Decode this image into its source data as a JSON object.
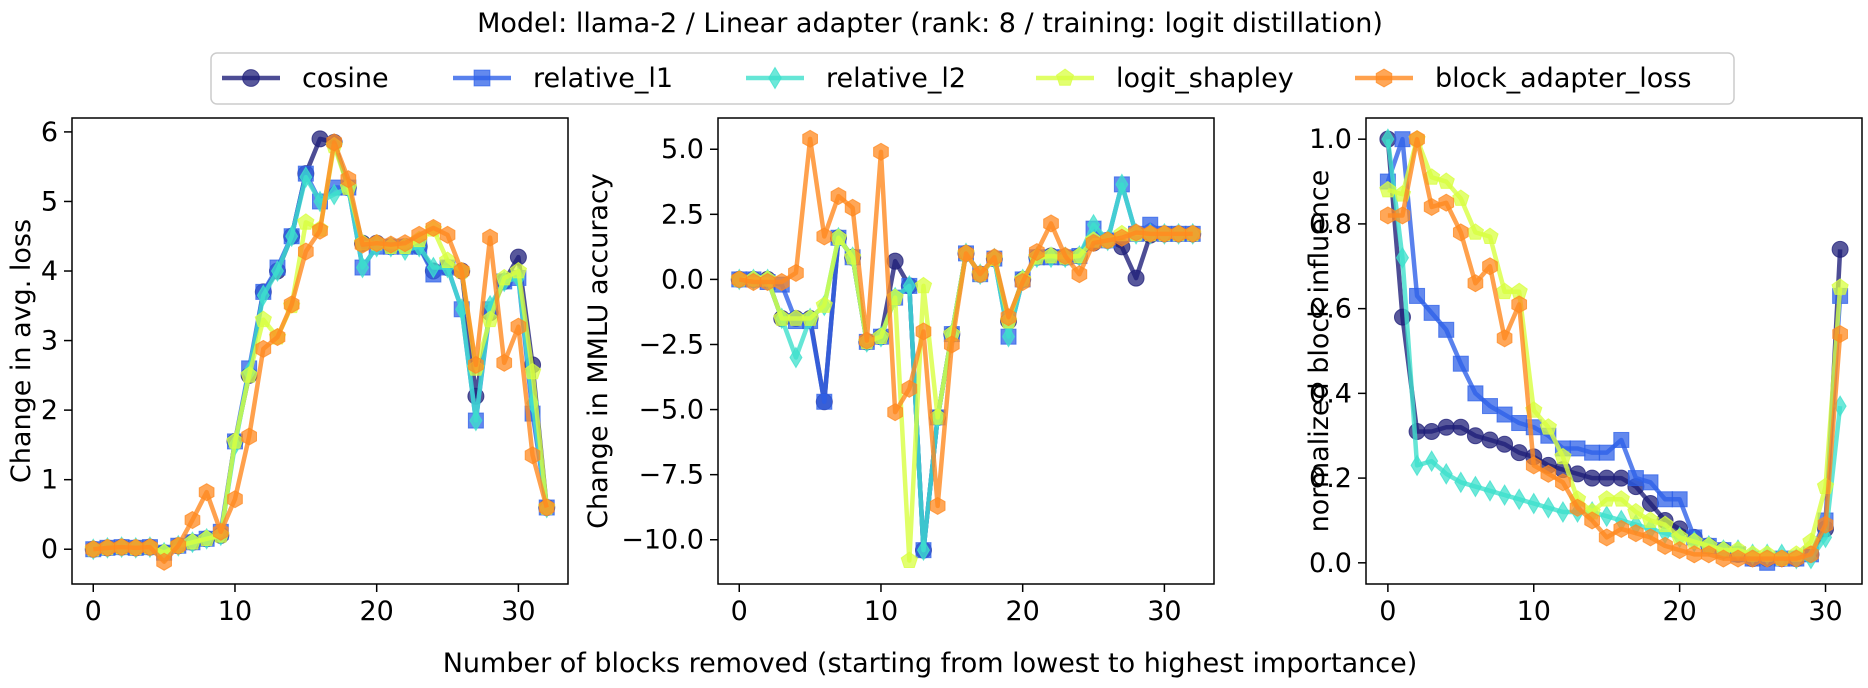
{
  "figure": {
    "title": "Model: llama-2 / Linear adapter (rank: 8 / training: logit distillation)",
    "xlabel": "Number of blocks removed (starting from lowest to highest importance)"
  },
  "legend": {
    "placement": "top-center",
    "items": [
      {
        "name": "cosine",
        "color": "#20207a",
        "marker": "circle"
      },
      {
        "name": "relative_l1",
        "color": "#2f62e8",
        "marker": "square"
      },
      {
        "name": "relative_l2",
        "color": "#3ee0cc",
        "marker": "diamond"
      },
      {
        "name": "logit_shapley",
        "color": "#d8ff40",
        "marker": "pentagon"
      },
      {
        "name": "block_adapter_loss",
        "color": "#ff8a20",
        "marker": "hexagon"
      }
    ]
  },
  "chart_data": [
    {
      "type": "line",
      "ylabel": "Change in avg. loss",
      "xlim": [
        -1.5,
        33.5
      ],
      "ylim": [
        -0.5,
        6.2
      ],
      "xticks": [
        0,
        10,
        20,
        30
      ],
      "yticks": [
        0,
        1,
        2,
        3,
        4,
        5,
        6
      ],
      "x": [
        0,
        1,
        2,
        3,
        4,
        5,
        6,
        7,
        8,
        9,
        10,
        11,
        12,
        13,
        14,
        15,
        16,
        17,
        18,
        19,
        20,
        21,
        22,
        23,
        24,
        25,
        26,
        27,
        28,
        29,
        30,
        31,
        32
      ],
      "series": [
        {
          "name": "cosine",
          "values": [
            0,
            0.02,
            0.03,
            0.02,
            0.03,
            -0.05,
            0.05,
            0.1,
            0.15,
            0.2,
            1.55,
            2.5,
            3.7,
            4.0,
            4.5,
            5.4,
            5.9,
            5.85,
            5.2,
            4.4,
            4.4,
            4.35,
            4.35,
            4.35,
            4.0,
            4.05,
            4.0,
            2.2,
            3.4,
            3.85,
            4.2,
            2.65,
            0.6
          ]
        },
        {
          "name": "relative_l1",
          "values": [
            0,
            0.02,
            0.03,
            0.02,
            0.03,
            -0.05,
            0.05,
            0.1,
            0.15,
            0.25,
            1.55,
            2.6,
            3.7,
            4.05,
            4.5,
            5.4,
            5.0,
            5.2,
            5.2,
            4.05,
            4.35,
            4.35,
            4.35,
            4.35,
            3.95,
            4.05,
            3.45,
            1.85,
            3.45,
            3.85,
            3.9,
            1.95,
            0.6
          ]
        },
        {
          "name": "relative_l2",
          "values": [
            0,
            0.02,
            0.03,
            0.02,
            0.03,
            -0.05,
            0.05,
            0.1,
            0.15,
            0.2,
            1.5,
            2.55,
            3.65,
            4.0,
            4.5,
            5.35,
            5.0,
            5.1,
            5.2,
            4.05,
            4.35,
            4.35,
            4.3,
            4.35,
            4.05,
            4.05,
            3.45,
            1.85,
            3.5,
            3.85,
            3.9,
            2.1,
            0.6
          ]
        },
        {
          "name": "logit_shapley",
          "values": [
            0,
            0.02,
            0.03,
            0.02,
            0.03,
            -0.05,
            0.05,
            0.1,
            0.15,
            0.2,
            1.55,
            2.5,
            3.3,
            3.05,
            3.5,
            4.7,
            4.6,
            5.8,
            5.2,
            4.4,
            4.4,
            4.35,
            4.35,
            4.45,
            4.6,
            4.15,
            4.0,
            2.6,
            3.3,
            3.9,
            4.0,
            2.55,
            0.6
          ]
        },
        {
          "name": "block_adapter_loss",
          "values": [
            0,
            0.02,
            0.03,
            0.02,
            0.03,
            -0.18,
            0.05,
            0.42,
            0.82,
            0.25,
            0.72,
            1.62,
            2.88,
            3.05,
            3.52,
            4.28,
            4.58,
            5.85,
            5.32,
            4.38,
            4.4,
            4.38,
            4.4,
            4.52,
            4.62,
            4.52,
            4.0,
            2.65,
            4.48,
            2.68,
            3.2,
            1.35,
            0.6
          ]
        }
      ]
    },
    {
      "type": "line",
      "ylabel": "Change in MMLU accuracy",
      "xlim": [
        -1.5,
        33.5
      ],
      "ylim": [
        -11.7,
        6.2
      ],
      "xticks": [
        0,
        10,
        20,
        30
      ],
      "yticks": [
        5.0,
        2.5,
        0.0,
        -2.5,
        -5.0,
        -7.5,
        -10.0
      ],
      "x": [
        0,
        1,
        2,
        3,
        4,
        5,
        6,
        7,
        8,
        9,
        10,
        11,
        12,
        13,
        14,
        15,
        16,
        17,
        18,
        19,
        20,
        21,
        22,
        23,
        24,
        25,
        26,
        27,
        28,
        29,
        30,
        31,
        32
      ],
      "series": [
        {
          "name": "cosine",
          "values": [
            0,
            0,
            0,
            -1.5,
            -1.5,
            -1.5,
            -4.7,
            1.6,
            0.85,
            -2.4,
            -2.2,
            0.7,
            -0.25,
            -10.4,
            -5.3,
            -2.1,
            1.0,
            0.2,
            0.8,
            -1.6,
            0,
            0.85,
            0.9,
            0.85,
            0.9,
            1.4,
            1.5,
            1.25,
            0.05,
            1.7,
            1.75,
            1.75,
            1.75
          ]
        },
        {
          "name": "relative_l1",
          "values": [
            0,
            0,
            -0.1,
            -0.2,
            -1.6,
            -1.6,
            -4.7,
            1.6,
            0.85,
            -2.4,
            -2.2,
            -0.7,
            -0.25,
            -10.4,
            -5.3,
            -2.1,
            1.0,
            0.2,
            0.8,
            -2.2,
            0,
            0.85,
            0.85,
            0.85,
            0.9,
            1.95,
            1.5,
            3.65,
            1.75,
            2.1,
            1.75,
            1.75,
            1.75
          ]
        },
        {
          "name": "relative_l2",
          "values": [
            0,
            0,
            0,
            -1.5,
            -3.0,
            -1.5,
            -1.0,
            1.6,
            0.85,
            -2.4,
            -2.2,
            -0.7,
            -0.25,
            -10.4,
            -5.3,
            -2.1,
            1.0,
            0.2,
            0.8,
            -2.2,
            0,
            0.85,
            0.85,
            0.85,
            0.9,
            2.1,
            1.5,
            3.65,
            1.75,
            1.75,
            1.75,
            1.75,
            1.75
          ]
        },
        {
          "name": "logit_shapley",
          "values": [
            0,
            0,
            0,
            -1.5,
            -1.5,
            -1.5,
            -1.0,
            1.6,
            0.85,
            -2.4,
            -2.2,
            -0.7,
            -10.8,
            -0.25,
            -5.3,
            -2.1,
            1.0,
            0.2,
            0.8,
            -1.6,
            0,
            0.85,
            0.9,
            0.85,
            0.9,
            1.5,
            1.5,
            1.75,
            1.75,
            1.75,
            1.75,
            1.75,
            1.75
          ]
        },
        {
          "name": "block_adapter_loss",
          "values": [
            0,
            -0.1,
            -0.1,
            -0.1,
            0.25,
            5.4,
            1.65,
            3.2,
            2.75,
            -2.35,
            4.9,
            -5.1,
            -4.2,
            -2.0,
            -8.7,
            -2.5,
            1.0,
            0.2,
            0.85,
            -1.45,
            -0.1,
            1.05,
            2.15,
            0.9,
            0.2,
            1.4,
            1.5,
            1.6,
            1.8,
            1.75,
            1.75,
            1.75,
            1.75
          ]
        }
      ]
    },
    {
      "type": "line",
      "ylabel": "normalized block influence",
      "xlim": [
        -1.5,
        32.5
      ],
      "ylim": [
        -0.05,
        1.05
      ],
      "xticks": [
        0,
        10,
        20,
        30
      ],
      "yticks": [
        0.0,
        0.2,
        0.4,
        0.6,
        0.8,
        1.0
      ],
      "x": [
        0,
        1,
        2,
        3,
        4,
        5,
        6,
        7,
        8,
        9,
        10,
        11,
        12,
        13,
        14,
        15,
        16,
        17,
        18,
        19,
        20,
        21,
        22,
        23,
        24,
        25,
        26,
        27,
        28,
        29,
        30,
        31
      ],
      "series": [
        {
          "name": "cosine",
          "values": [
            1.0,
            0.58,
            0.31,
            0.31,
            0.32,
            0.32,
            0.3,
            0.29,
            0.28,
            0.26,
            0.25,
            0.23,
            0.22,
            0.21,
            0.2,
            0.2,
            0.2,
            0.18,
            0.14,
            0.1,
            0.08,
            0.06,
            0.04,
            0.03,
            0.02,
            0.01,
            0.01,
            0.01,
            0.01,
            0.02,
            0.08,
            0.74
          ]
        },
        {
          "name": "relative_l1",
          "values": [
            0.9,
            1.0,
            0.63,
            0.59,
            0.55,
            0.47,
            0.4,
            0.37,
            0.35,
            0.33,
            0.32,
            0.3,
            0.27,
            0.27,
            0.26,
            0.26,
            0.29,
            0.2,
            0.19,
            0.15,
            0.15,
            0.06,
            0.04,
            0.03,
            0.02,
            0.01,
            0.0,
            0.01,
            0.01,
            0.02,
            0.1,
            0.63
          ]
        },
        {
          "name": "relative_l2",
          "values": [
            1.0,
            0.72,
            0.23,
            0.24,
            0.21,
            0.19,
            0.18,
            0.17,
            0.16,
            0.15,
            0.14,
            0.13,
            0.12,
            0.12,
            0.12,
            0.11,
            0.1,
            0.09,
            0.08,
            0.07,
            0.06,
            0.05,
            0.04,
            0.03,
            0.03,
            0.02,
            0.02,
            0.02,
            0.01,
            0.01,
            0.06,
            0.37
          ]
        },
        {
          "name": "logit_shapley",
          "values": [
            0.88,
            0.87,
            1.0,
            0.91,
            0.9,
            0.86,
            0.78,
            0.77,
            0.64,
            0.64,
            0.36,
            0.32,
            0.25,
            0.15,
            0.12,
            0.15,
            0.15,
            0.12,
            0.1,
            0.09,
            0.06,
            0.05,
            0.04,
            0.03,
            0.03,
            0.02,
            0.02,
            0.01,
            0.02,
            0.05,
            0.18,
            0.65
          ]
        },
        {
          "name": "block_adapter_loss",
          "values": [
            0.82,
            0.82,
            1.0,
            0.84,
            0.85,
            0.78,
            0.66,
            0.7,
            0.53,
            0.61,
            0.23,
            0.21,
            0.19,
            0.13,
            0.1,
            0.06,
            0.08,
            0.07,
            0.06,
            0.04,
            0.03,
            0.02,
            0.02,
            0.01,
            0.01,
            0.01,
            0.01,
            0.01,
            0.01,
            0.02,
            0.09,
            0.54
          ]
        }
      ]
    }
  ]
}
